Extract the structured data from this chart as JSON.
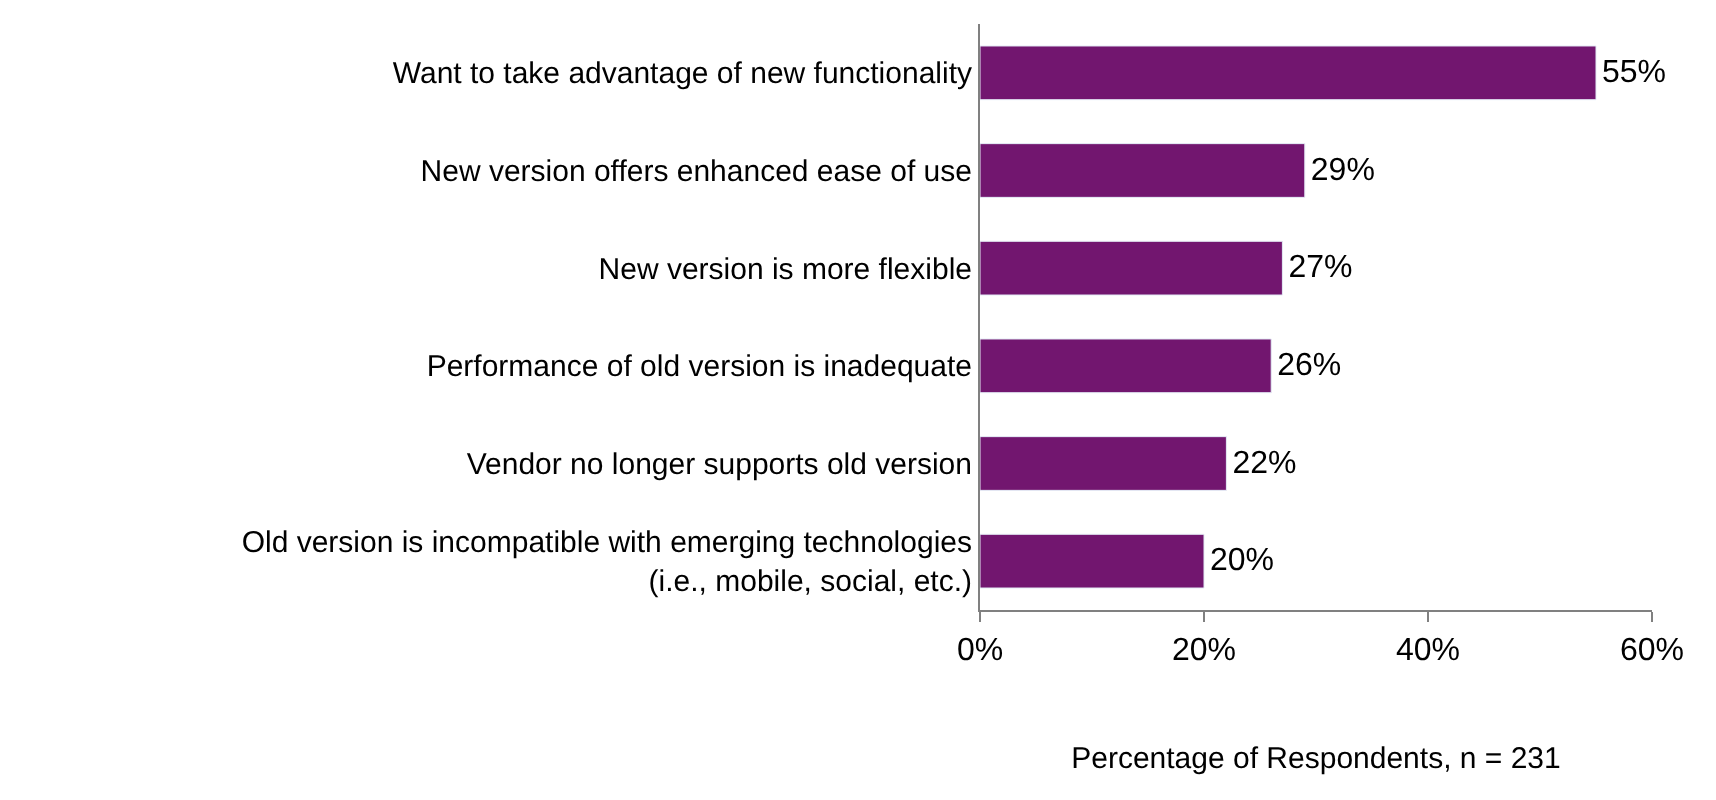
{
  "chart_data": {
    "type": "bar",
    "orientation": "horizontal",
    "categories": [
      "Want to take advantage of new functionality",
      "New version offers enhanced ease of use",
      "New version is more flexible",
      "Performance of old version is inadequate",
      "Vendor no longer supports old version",
      "Old version is incompatible with emerging technologies\n(i.e., mobile, social, etc.)"
    ],
    "values": [
      55,
      29,
      27,
      26,
      22,
      20
    ],
    "value_labels": [
      "55%",
      "29%",
      "27%",
      "26%",
      "22%",
      "20%"
    ],
    "color": "#72166f",
    "xlim": [
      0,
      60
    ],
    "xticks": [
      {
        "value": 0,
        "label": "0%"
      },
      {
        "value": 20,
        "label": "20%"
      },
      {
        "value": 40,
        "label": "40%"
      },
      {
        "value": 60,
        "label": "60%"
      }
    ],
    "xlabel": "Percentage of Respondents, n = 231"
  }
}
